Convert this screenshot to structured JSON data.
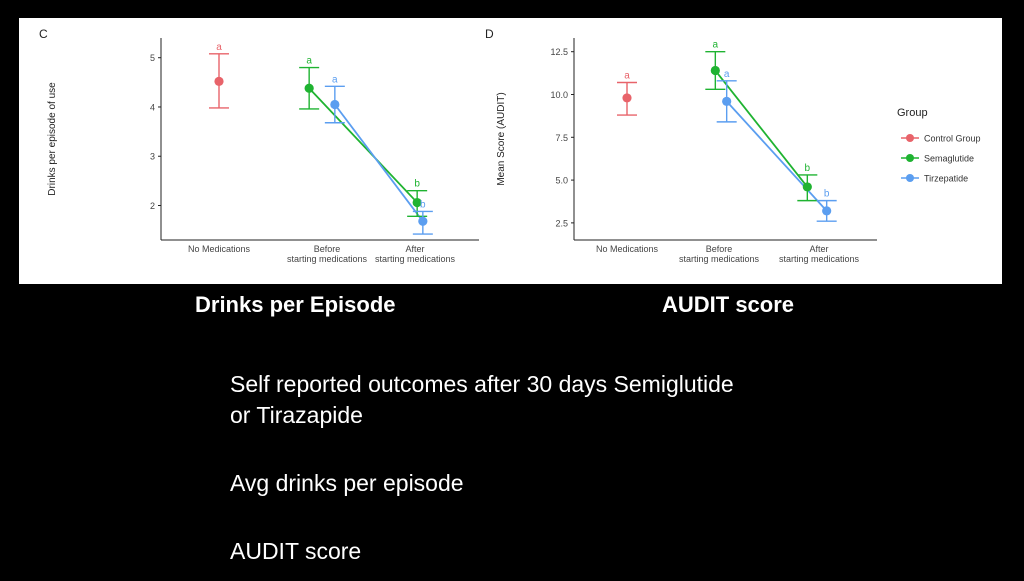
{
  "colors": {
    "Control Group": "#e8636a",
    "Semaglutide": "#1fb331",
    "Tirzepatide": "#5b9ef0"
  },
  "chart_data": [
    {
      "type": "scatter",
      "panel_label": "C",
      "title": "",
      "xlabel": "",
      "ylabel": "Drinks per episode of use",
      "ylim": [
        1.3,
        5.4
      ],
      "yticks": [
        2,
        3,
        4,
        5
      ],
      "categories": [
        "No Medications",
        "Before starting medications",
        "After starting medications"
      ],
      "grid": false,
      "series": [
        {
          "name": "Control Group",
          "points": [
            {
              "x": 0,
              "y": 4.52,
              "lo": 3.98,
              "hi": 5.08,
              "letter": "a"
            }
          ]
        },
        {
          "name": "Semaglutide",
          "points": [
            {
              "x": 0.92,
              "y": 4.38,
              "lo": 3.96,
              "hi": 4.8,
              "letter": "a"
            },
            {
              "x": 1.92,
              "y": 2.06,
              "lo": 1.78,
              "hi": 2.3,
              "letter": "b"
            }
          ]
        },
        {
          "name": "Tirzepatide",
          "points": [
            {
              "x": 1.08,
              "y": 4.05,
              "lo": 3.68,
              "hi": 4.42,
              "letter": "a"
            },
            {
              "x": 2.08,
              "y": 1.68,
              "lo": 1.42,
              "hi": 1.88,
              "letter": "b"
            }
          ]
        }
      ]
    },
    {
      "type": "scatter",
      "panel_label": "D",
      "title": "",
      "xlabel": "",
      "ylabel": "Mean Score (AUDIT)",
      "ylim": [
        1.5,
        13.3
      ],
      "yticks": [
        2.5,
        5.0,
        7.5,
        10.0,
        12.5
      ],
      "tick_labels": [
        "2.5",
        "5.0",
        "7.5",
        "10.0",
        "12.5"
      ],
      "categories": [
        "No Medications",
        "Before starting medications",
        "After starting medications"
      ],
      "grid": false,
      "legend": {
        "title": "Group",
        "position": "right",
        "entries": [
          "Control Group",
          "Semaglutide",
          "Tirzepatide"
        ]
      },
      "series": [
        {
          "name": "Control Group",
          "points": [
            {
              "x": 0,
              "y": 9.8,
              "lo": 8.8,
              "hi": 10.7,
              "letter": "a"
            }
          ]
        },
        {
          "name": "Semaglutide",
          "points": [
            {
              "x": 0.92,
              "y": 11.4,
              "lo": 10.3,
              "hi": 12.5,
              "letter": "a"
            },
            {
              "x": 1.92,
              "y": 4.6,
              "lo": 3.8,
              "hi": 5.3,
              "letter": "b"
            }
          ]
        },
        {
          "name": "Tirzepatide",
          "points": [
            {
              "x": 1.08,
              "y": 9.6,
              "lo": 8.4,
              "hi": 10.8,
              "letter": "a"
            },
            {
              "x": 2.08,
              "y": 3.2,
              "lo": 2.6,
              "hi": 3.8,
              "letter": "b"
            }
          ]
        }
      ]
    }
  ],
  "captions": {
    "left": "Drinks per Episode",
    "right": "AUDIT score"
  },
  "body": {
    "line1": "Self reported outcomes after 30 days Semiglutide",
    "line2": "or Tirazapide",
    "line3": "Avg drinks per episode",
    "line4": "AUDIT score"
  }
}
